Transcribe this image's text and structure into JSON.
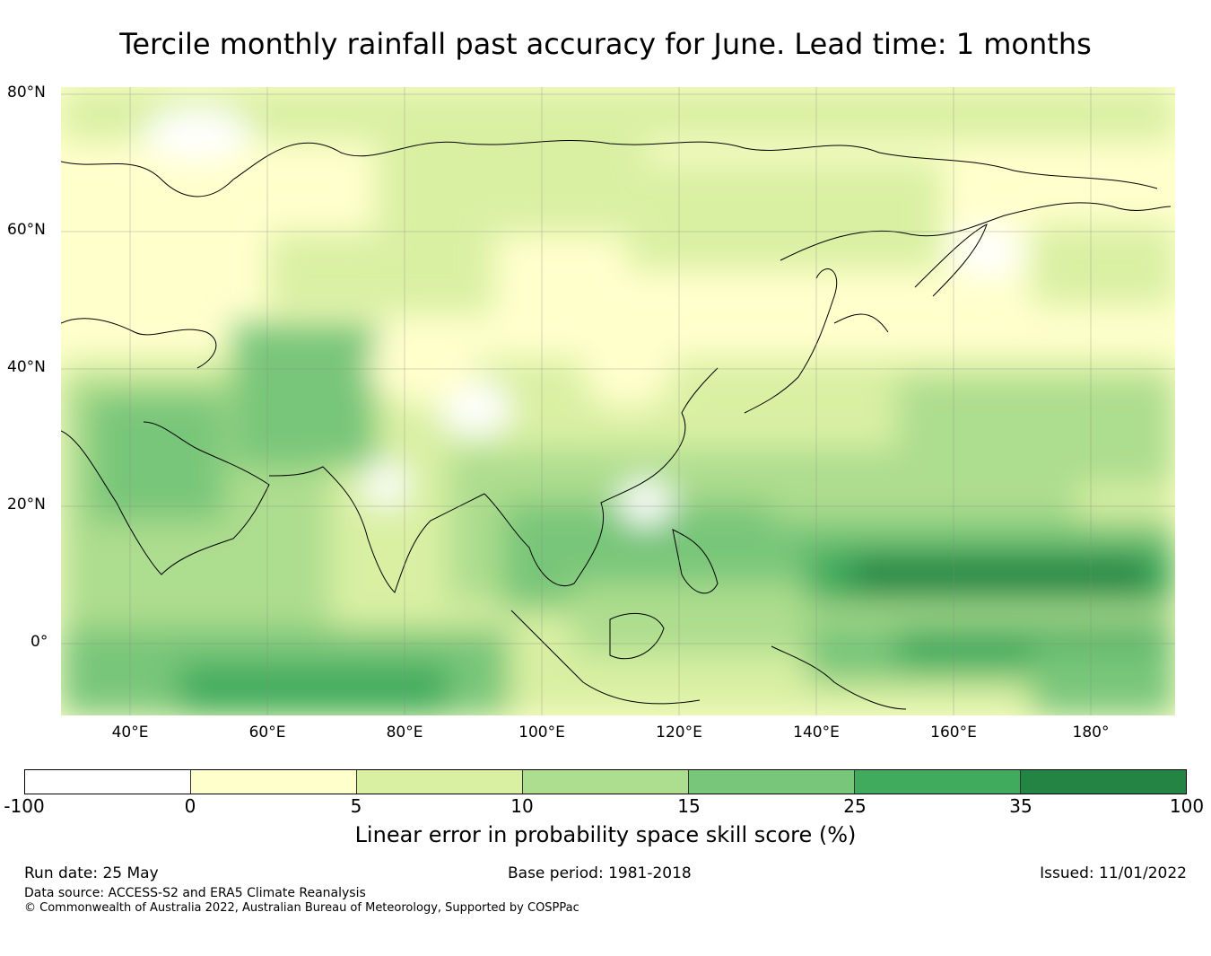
{
  "title": "Tercile monthly rainfall past accuracy for June. Lead time: 1 months",
  "map": {
    "lat_labels": [
      "80°N",
      "60°N",
      "40°N",
      "20°N",
      "0°"
    ],
    "lon_labels": [
      "40°E",
      "60°E",
      "80°E",
      "100°E",
      "120°E",
      "140°E",
      "160°E",
      "180°"
    ]
  },
  "colorbar": {
    "ticks": [
      "-100",
      "0",
      "5",
      "10",
      "15",
      "25",
      "35",
      "100"
    ],
    "colors": [
      "#ffffff",
      "#ffffcc",
      "#d9f0a3",
      "#addd8e",
      "#78c679",
      "#41ab5d",
      "#238443"
    ],
    "label": "Linear error in probability space skill score (%)"
  },
  "footer": {
    "run_date": "Run date: 25 May",
    "base_period": "Base period: 1981-2018",
    "issued": "Issued: 11/01/2022",
    "data_source": "Data source: ACCESS-S2 and ERA5 Climate Reanalysis",
    "copyright": "© Commonwealth of Australia 2022, Australian Bureau of Meteorology, Supported by COSPPac"
  }
}
